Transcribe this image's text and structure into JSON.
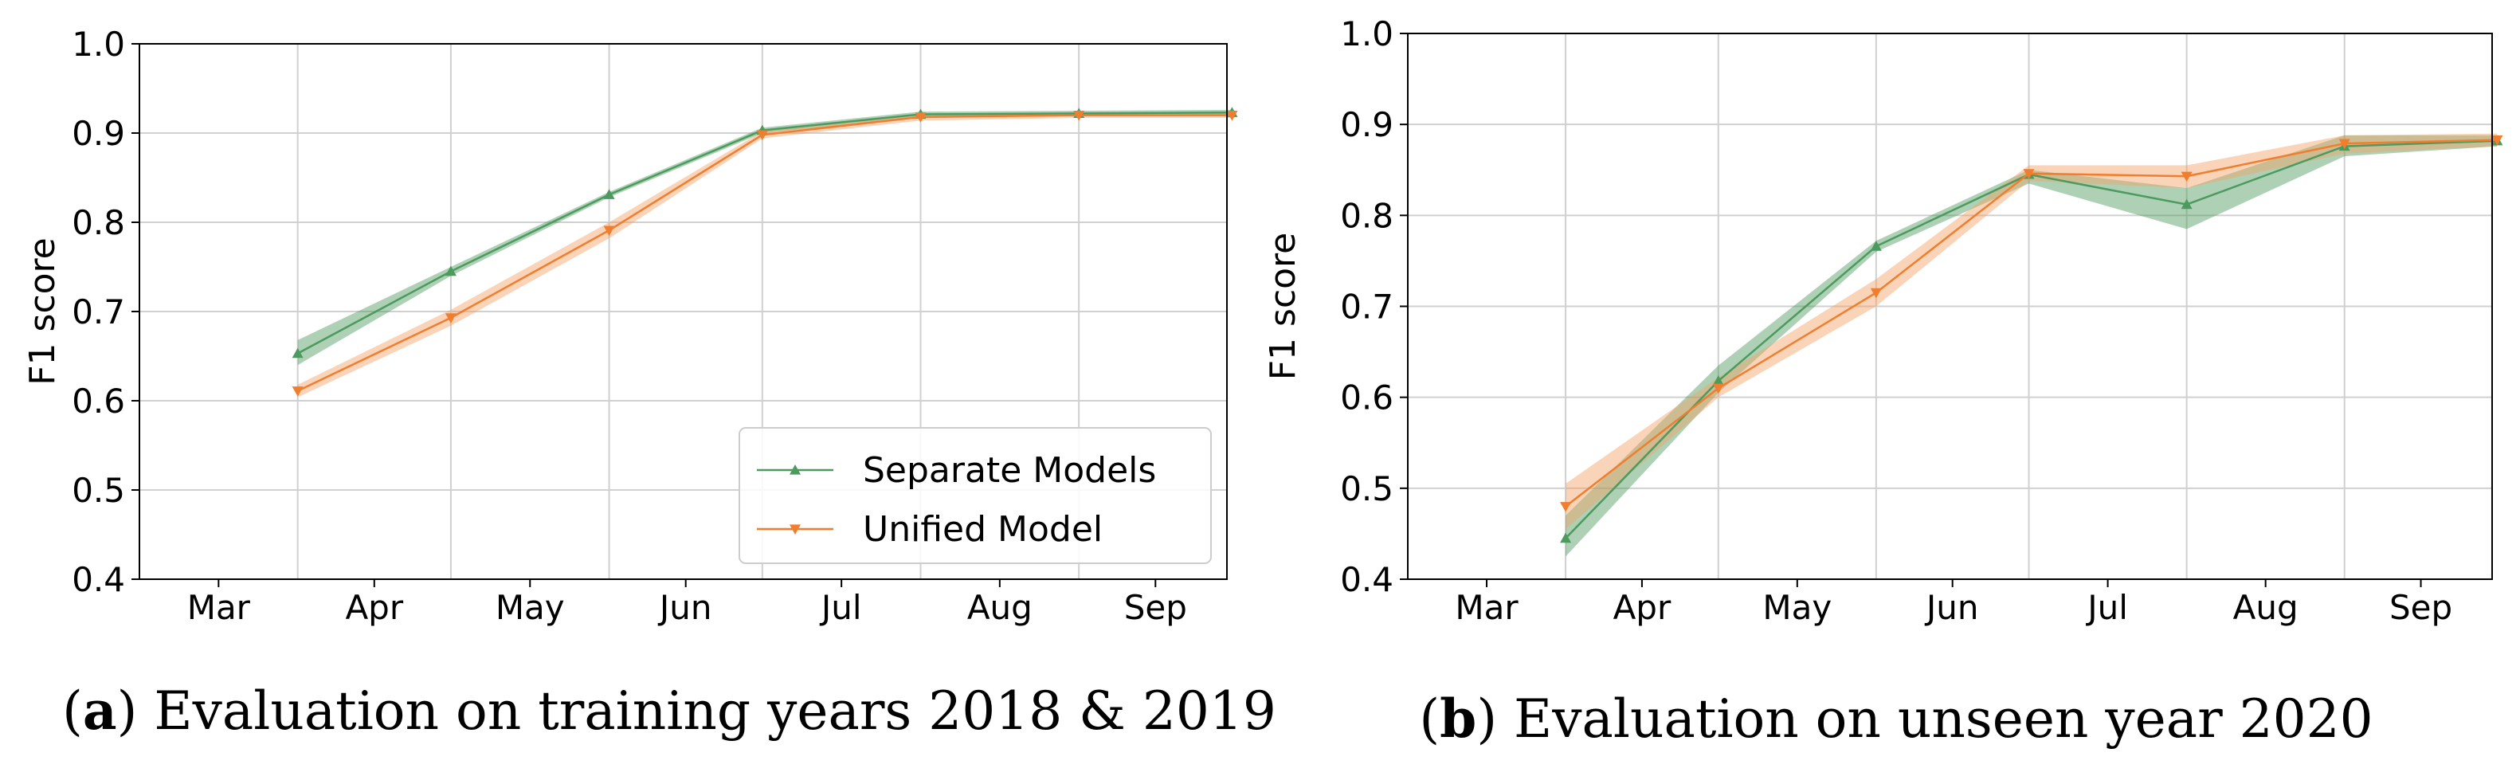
{
  "colors": {
    "separate": "#4c9a5e",
    "unified": "#f07e2f",
    "separate_band": "#4c9a5e",
    "unified_band": "#f4a063",
    "grid": "#d0d0d0"
  },
  "chart_data": [
    {
      "type": "line",
      "caption_letter": "a",
      "caption_text": "Evaluation on training years 2018 & 2019",
      "ylabel": "F1 score",
      "ylim": [
        0.4,
        1.0
      ],
      "yticks": [
        "0.4",
        "0.5",
        "0.6",
        "0.7",
        "0.8",
        "0.9",
        "1.0"
      ],
      "xlim": [
        "Mar 1",
        "Sep 30"
      ],
      "xticks": [
        "Mar",
        "Apr",
        "May",
        "Jun",
        "Jul",
        "Aug",
        "Sep"
      ],
      "grid": true,
      "legend_position": "lower-right",
      "series": [
        {
          "name": "Separate Models",
          "marker": "triangle-up",
          "x": [
            "Apr 1",
            "May 1",
            "Jun 1",
            "Jul 1",
            "Aug 1",
            "Sep 1",
            "Oct 1"
          ],
          "values": [
            0.653,
            0.745,
            0.831,
            0.903,
            0.921,
            0.922,
            0.923
          ],
          "lower": [
            0.64,
            0.74,
            0.828,
            0.9,
            0.917,
            0.919,
            0.92
          ],
          "upper": [
            0.668,
            0.75,
            0.834,
            0.906,
            0.924,
            0.925,
            0.926
          ]
        },
        {
          "name": "Unified Model",
          "marker": "triangle-down",
          "x": [
            "Apr 1",
            "May 1",
            "Jun 1",
            "Jul 1",
            "Aug 1",
            "Sep 1",
            "Oct 1"
          ],
          "values": [
            0.611,
            0.693,
            0.791,
            0.898,
            0.918,
            0.92,
            0.92
          ],
          "lower": [
            0.604,
            0.684,
            0.782,
            0.894,
            0.914,
            0.917,
            0.917
          ],
          "upper": [
            0.618,
            0.702,
            0.8,
            0.902,
            0.922,
            0.923,
            0.923
          ]
        }
      ]
    },
    {
      "type": "line",
      "caption_letter": "b",
      "caption_text": "Evaluation on unseen year 2020",
      "ylabel": "F1 score",
      "ylim": [
        0.4,
        1.0
      ],
      "yticks": [
        "0.4",
        "0.5",
        "0.6",
        "0.7",
        "0.8",
        "0.9",
        "1.0"
      ],
      "xlim": [
        "Mar 1",
        "Sep 30"
      ],
      "xticks": [
        "Mar",
        "Apr",
        "May",
        "Jun",
        "Jul",
        "Aug",
        "Sep"
      ],
      "grid": true,
      "series": [
        {
          "name": "Separate Models",
          "marker": "triangle-up",
          "x": [
            "Apr 1",
            "May 1",
            "Jun 1",
            "Jul 1",
            "Aug 1",
            "Sep 1",
            "Oct 1"
          ],
          "values": [
            0.445,
            0.618,
            0.766,
            0.845,
            0.812,
            0.876,
            0.882
          ],
          "lower": [
            0.425,
            0.605,
            0.76,
            0.835,
            0.785,
            0.865,
            0.876
          ],
          "upper": [
            0.47,
            0.635,
            0.772,
            0.85,
            0.83,
            0.888,
            0.888
          ]
        },
        {
          "name": "Unified Model",
          "marker": "triangle-down",
          "x": [
            "Apr 1",
            "May 1",
            "Jun 1",
            "Jul 1",
            "Aug 1",
            "Sep 1",
            "Oct 1"
          ],
          "values": [
            0.48,
            0.61,
            0.715,
            0.846,
            0.843,
            0.879,
            0.883
          ],
          "lower": [
            0.455,
            0.6,
            0.7,
            0.838,
            0.83,
            0.868,
            0.876
          ],
          "upper": [
            0.505,
            0.622,
            0.73,
            0.855,
            0.855,
            0.888,
            0.89
          ]
        }
      ]
    }
  ]
}
